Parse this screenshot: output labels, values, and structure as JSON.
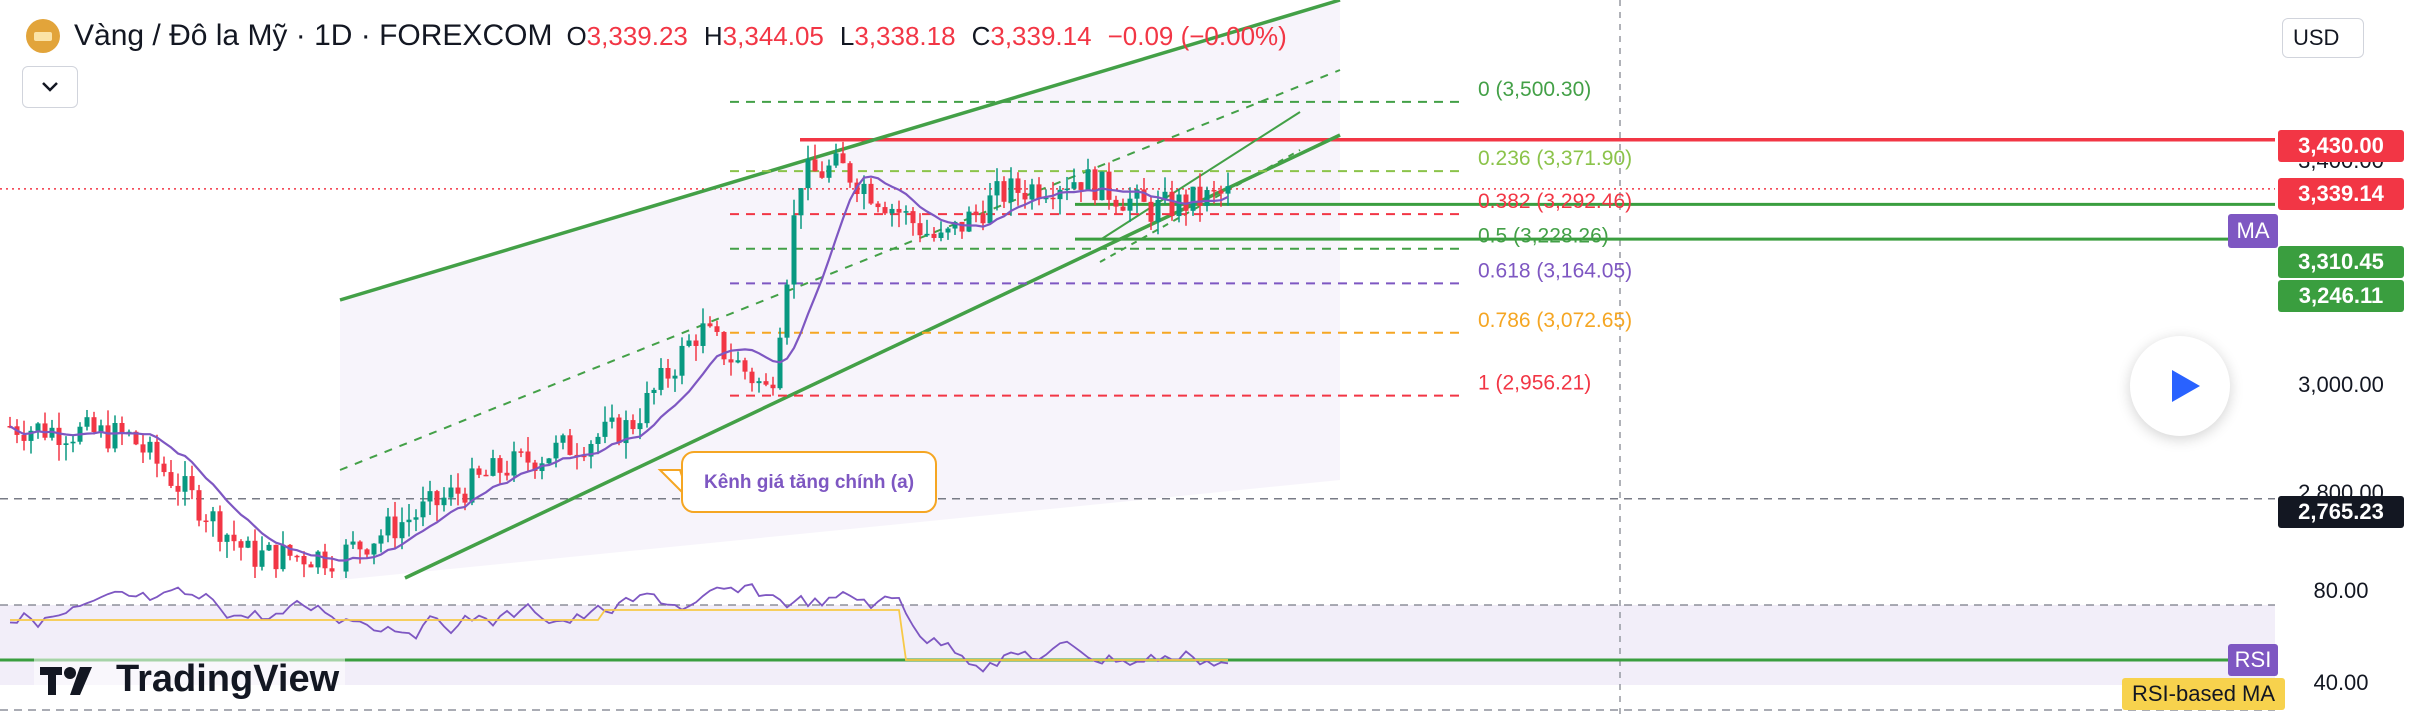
{
  "header": {
    "symbol": "Vàng / Đô la Mỹ · 1D · FOREXCOM",
    "open_key": "O",
    "open": "3,339.23",
    "high_key": "H",
    "high": "3,344.05",
    "low_key": "L",
    "low": "3,338.18",
    "close_key": "C",
    "close": "3,339.14",
    "change": "−0.09 (−0.00%)"
  },
  "currency": "USD",
  "colors": {
    "up": "#089981",
    "down": "#f23645",
    "channel": "#43a047",
    "ma": "#7e57c2",
    "rsi_ma": "#f7c948",
    "fib_0": "#43a047",
    "fib_236": "#8bc34a",
    "fib_382": "#f23645",
    "fib_5": "#43a047",
    "fib_618": "#7e57c2",
    "fib_786": "#f5a623",
    "fib_1": "#f23645"
  },
  "chart_data": {
    "type": "candlestick",
    "instrument": "Vàng / Đô la Mỹ",
    "timeframe": "1D",
    "ylim": [
      2600,
      3600
    ],
    "price_axis_ticks": [
      "3,400.00",
      "3,000.00",
      "2,800.00"
    ],
    "fib_levels": [
      {
        "label": "0 (3,500.30)",
        "ratio": 0,
        "value": 3500.3
      },
      {
        "label": "0.236 (3,371.90)",
        "ratio": 0.236,
        "value": 3371.9
      },
      {
        "label": "0.382 (3,292.46)",
        "ratio": 0.382,
        "value": 3292.46
      },
      {
        "label": "0.5 (3,228.26)",
        "ratio": 0.5,
        "value": 3228.26
      },
      {
        "label": "0.618 (3,164.05)",
        "ratio": 0.618,
        "value": 3164.05
      },
      {
        "label": "0.786 (3,072.65)",
        "ratio": 0.786,
        "value": 3072.65
      },
      {
        "label": "1 (2,956.21)",
        "ratio": 1,
        "value": 2956.21
      }
    ],
    "price_tags": [
      {
        "label": "3,430.00",
        "value": 3430.0,
        "kind": "resistance"
      },
      {
        "label": "3,339.14",
        "value": 3339.14,
        "kind": "last-price"
      },
      {
        "label": "3,310.45",
        "value": 3310.45,
        "kind": "support"
      },
      {
        "label": "3,246.11",
        "value": 3246.11,
        "kind": "support"
      },
      {
        "label": "2,765.23",
        "value": 2765.23,
        "kind": "level"
      }
    ],
    "annotation": "Kênh giá tăng chính (a)",
    "ma_label": "MA",
    "rsi": {
      "ticks": [
        "80.00",
        "40.00"
      ],
      "label": "RSI",
      "ma_label": "RSI-based MA",
      "band": [
        30,
        70
      ]
    }
  },
  "brand": {
    "logo_text": "TradingView"
  }
}
